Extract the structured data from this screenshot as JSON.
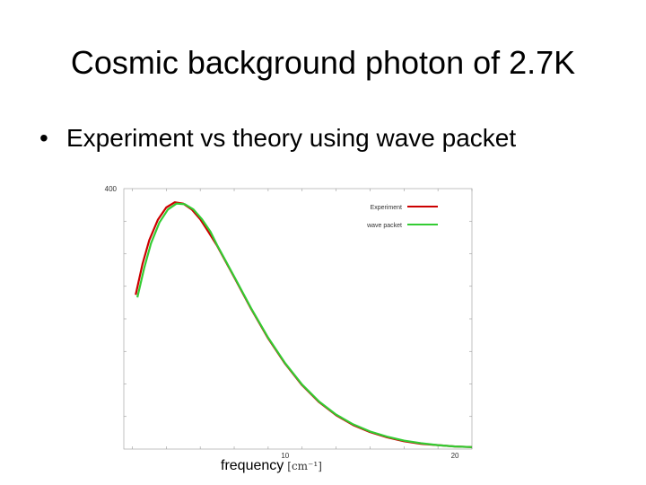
{
  "slide": {
    "title": "Cosmic background photon of 2.7K",
    "bullet": "Experiment vs theory using  wave packet",
    "bullet_marker": "•"
  },
  "chart_data": {
    "type": "line",
    "title": "",
    "xlabel": "frequency",
    "xunit": "[cm⁻¹]",
    "ylabel": "",
    "xlim": [
      0.5,
      21
    ],
    "ylim": [
      0,
      400
    ],
    "x_tick_labels": [
      {
        "value": 10,
        "label": "10"
      },
      {
        "value": 20,
        "label": "20"
      }
    ],
    "y_tick_labels": [
      {
        "value": 400,
        "label": "400"
      }
    ],
    "x_minor_ticks": [
      1,
      3,
      5,
      7,
      9,
      11,
      13,
      15,
      17,
      19,
      21
    ],
    "y_minor_ticks": [
      50,
      100,
      150,
      200,
      250,
      300,
      350
    ],
    "grid": false,
    "legend_position": "top-right",
    "series": [
      {
        "name": "Experiment",
        "color": "#cc0000",
        "x": [
          1.2,
          1.6,
          2.0,
          2.5,
          3.0,
          3.5,
          4.0,
          4.5,
          5.0,
          5.5,
          6.0,
          7.0,
          8.0,
          9.0,
          10.0,
          11.0,
          12.0,
          13.0,
          14.0,
          15.0,
          16.0,
          17.0,
          18.0,
          19.0,
          20.0,
          21.0
        ],
        "values": [
          237,
          284,
          321,
          352,
          371,
          379,
          377,
          368,
          353,
          333,
          312,
          264,
          215,
          170,
          131,
          98,
          72,
          52,
          37,
          26,
          18,
          12,
          8,
          6,
          4,
          3
        ]
      },
      {
        "name": "wave packet",
        "color": "#33cc33",
        "x": [
          1.3,
          1.7,
          2.1,
          2.6,
          3.1,
          3.6,
          4.1,
          4.6,
          5.1,
          5.6,
          6.0,
          7.0,
          8.0,
          9.0,
          10.0,
          11.0,
          12.0,
          13.0,
          14.0,
          15.0,
          16.0,
          17.0,
          18.0,
          19.0,
          20.0,
          21.0
        ],
        "values": [
          233,
          278,
          316,
          348,
          368,
          377,
          376,
          368,
          353,
          334,
          313,
          265,
          216,
          171,
          132,
          99,
          73,
          53,
          38,
          27,
          19,
          13,
          9,
          6,
          4,
          3
        ]
      }
    ]
  }
}
